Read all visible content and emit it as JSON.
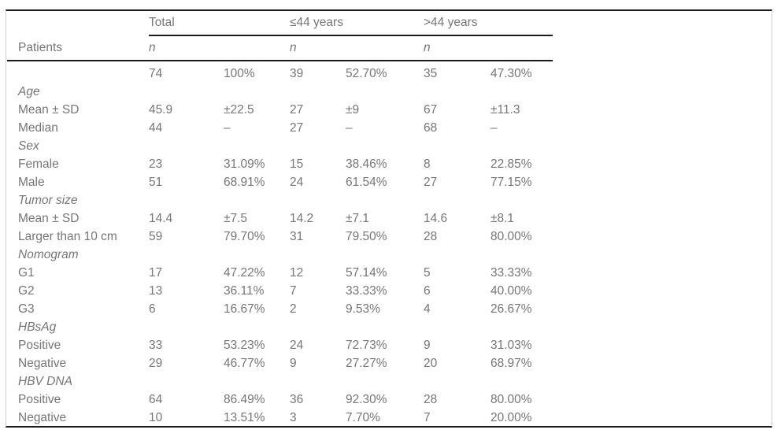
{
  "page": {
    "background": "#ffffff",
    "text_color": "#767676",
    "rule_color": "#1b1b1b",
    "frame_border_color": "#cccccc"
  },
  "table": {
    "row_header_label": "Patients",
    "groups": [
      {
        "label": "Total",
        "n_label": "n"
      },
      {
        "label": "≤44 years",
        "n_label": "n"
      },
      {
        "label": ">44 years",
        "n_label": "n"
      }
    ],
    "rows": [
      {
        "label": "",
        "section": false,
        "values": [
          "74",
          "100%",
          "39",
          "52.70%",
          "35",
          "47.30%"
        ]
      },
      {
        "label": "Age",
        "section": true,
        "values": [
          "",
          "",
          "",
          "",
          "",
          ""
        ]
      },
      {
        "label": "Mean ± SD",
        "section": false,
        "values": [
          "45.9",
          "±22.5",
          "27",
          "±9",
          "67",
          "±11.3"
        ]
      },
      {
        "label": "Median",
        "section": false,
        "values": [
          "44",
          "–",
          "27",
          "–",
          "68",
          "–"
        ]
      },
      {
        "label": "Sex",
        "section": true,
        "values": [
          "",
          "",
          "",
          "",
          "",
          ""
        ]
      },
      {
        "label": "Female",
        "section": false,
        "values": [
          "23",
          "31.09%",
          "15",
          "38.46%",
          "8",
          "22.85%"
        ]
      },
      {
        "label": "Male",
        "section": false,
        "values": [
          "51",
          "68.91%",
          "24",
          "61.54%",
          "27",
          "77.15%"
        ]
      },
      {
        "label": "Tumor size",
        "section": true,
        "values": [
          "",
          "",
          "",
          "",
          "",
          ""
        ]
      },
      {
        "label": "Mean ± SD",
        "section": false,
        "values": [
          "14.4",
          "±7.5",
          "14.2",
          "±7.1",
          "14.6",
          "±8.1"
        ]
      },
      {
        "label": "Larger than 10 cm",
        "section": false,
        "values": [
          "59",
          "79.70%",
          "31",
          "79.50%",
          "28",
          "80.00%"
        ]
      },
      {
        "label": "Nomogram",
        "section": true,
        "values": [
          "",
          "",
          "",
          "",
          "",
          ""
        ]
      },
      {
        "label": "G1",
        "section": false,
        "values": [
          "17",
          "47.22%",
          "12",
          "57.14%",
          "5",
          "33.33%"
        ]
      },
      {
        "label": "G2",
        "section": false,
        "values": [
          "13",
          "36.11%",
          "7",
          "33.33%",
          "6",
          "40.00%"
        ]
      },
      {
        "label": "G3",
        "section": false,
        "values": [
          "6",
          "16.67%",
          "2",
          "9.53%",
          "4",
          "26.67%"
        ]
      },
      {
        "label": "HBsAg",
        "section": true,
        "values": [
          "",
          "",
          "",
          "",
          "",
          ""
        ]
      },
      {
        "label": "Positive",
        "section": false,
        "values": [
          "33",
          "53.23%",
          "24",
          "72.73%",
          "9",
          "31.03%"
        ]
      },
      {
        "label": "Negative",
        "section": false,
        "values": [
          "29",
          "46.77%",
          "9",
          "27.27%",
          "20",
          "68.97%"
        ]
      },
      {
        "label": "HBV DNA",
        "section": true,
        "values": [
          "",
          "",
          "",
          "",
          "",
          ""
        ]
      },
      {
        "label": "Positive",
        "section": false,
        "values": [
          "64",
          "86.49%",
          "36",
          "92.30%",
          "28",
          "80.00%"
        ]
      },
      {
        "label": "Negative",
        "section": false,
        "values": [
          "10",
          "13.51%",
          "3",
          "7.70%",
          "7",
          "20.00%"
        ]
      }
    ]
  }
}
